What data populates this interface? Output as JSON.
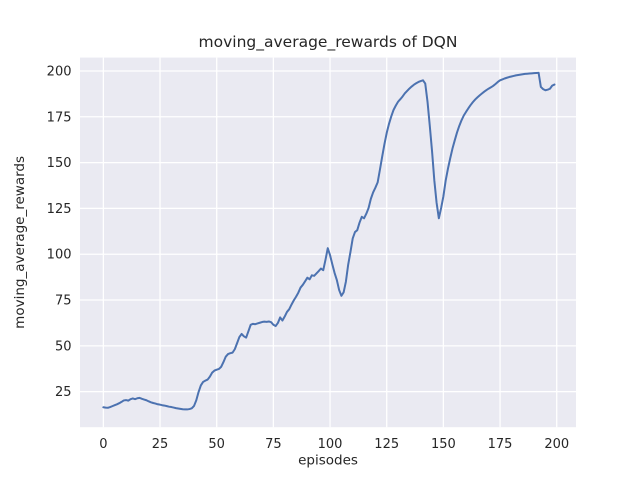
{
  "figure": {
    "title": "moving_average_rewards of DQN",
    "xlabel": "episodes",
    "ylabel": "moving_average_rewards"
  },
  "chart_data": {
    "type": "line",
    "title": "moving_average_rewards of DQN",
    "xlabel": "episodes",
    "ylabel": "moving_average_rewards",
    "x_ticks": [
      0,
      25,
      50,
      75,
      100,
      125,
      150,
      175,
      200
    ],
    "y_ticks": [
      25,
      50,
      75,
      100,
      125,
      150,
      175,
      200
    ],
    "xlim": [
      -10.3,
      208.5
    ],
    "ylim": [
      5.6,
      207.3
    ],
    "grid": true,
    "legend": "none",
    "style": {
      "figure_bg": "#FFFFFF",
      "plot_bg": "#EAEAF2",
      "grid_color": "#FFFFFF",
      "line_color": "#4C72B0",
      "text_color": "#262626"
    },
    "series": [
      {
        "name": "moving_average_rewards",
        "x": [
          0,
          1,
          2,
          3,
          4,
          5,
          6,
          7,
          8,
          9,
          10,
          11,
          12,
          13,
          14,
          15,
          16,
          17,
          18,
          19,
          20,
          21,
          22,
          23,
          24,
          25,
          26,
          27,
          28,
          29,
          30,
          31,
          32,
          33,
          34,
          35,
          36,
          37,
          38,
          39,
          40,
          41,
          42,
          43,
          44,
          45,
          46,
          47,
          48,
          49,
          50,
          51,
          52,
          53,
          54,
          55,
          56,
          57,
          58,
          59,
          60,
          61,
          62,
          63,
          64,
          65,
          66,
          67,
          68,
          69,
          70,
          71,
          72,
          73,
          74,
          75,
          76,
          77,
          78,
          79,
          80,
          81,
          82,
          83,
          84,
          85,
          86,
          87,
          88,
          89,
          90,
          91,
          92,
          93,
          94,
          95,
          96,
          97,
          98,
          99,
          100,
          101,
          102,
          103,
          104,
          105,
          106,
          107,
          108,
          109,
          110,
          111,
          112,
          113,
          114,
          115,
          116,
          117,
          118,
          119,
          120,
          121,
          122,
          123,
          124,
          125,
          126,
          127,
          128,
          129,
          130,
          131,
          132,
          133,
          134,
          135,
          136,
          137,
          138,
          139,
          140,
          141,
          142,
          143,
          144,
          145,
          146,
          147,
          148,
          149,
          150,
          151,
          152,
          153,
          154,
          155,
          156,
          157,
          158,
          159,
          160,
          161,
          162,
          163,
          164,
          165,
          166,
          167,
          168,
          169,
          170,
          171,
          172,
          173,
          174,
          175,
          176,
          177,
          178,
          179,
          180,
          181,
          182,
          183,
          184,
          185,
          186,
          187,
          188,
          189,
          190,
          191,
          192,
          193,
          194,
          195,
          196,
          197,
          198,
          199
        ],
        "y": [
          16.5,
          16.3,
          16.2,
          16.6,
          17.1,
          17.6,
          18.1,
          18.7,
          19.4,
          20.2,
          20.4,
          20.1,
          20.9,
          21.3,
          20.9,
          21.4,
          21.6,
          21.1,
          20.7,
          20.3,
          19.7,
          19.2,
          18.8,
          18.5,
          18.1,
          17.9,
          17.6,
          17.4,
          17.1,
          16.8,
          16.6,
          16.3,
          16.0,
          15.8,
          15.6,
          15.4,
          15.3,
          15.3,
          15.5,
          15.9,
          17.2,
          20.3,
          24.8,
          28.4,
          30.3,
          31.0,
          31.6,
          33.2,
          35.4,
          36.5,
          37.0,
          37.4,
          38.6,
          41.2,
          44.1,
          45.5,
          46.0,
          46.3,
          48.2,
          51.5,
          54.8,
          56.5,
          55.2,
          54.5,
          58.0,
          61.5,
          62.0,
          61.8,
          62.2,
          62.6,
          63.0,
          63.2,
          63.1,
          63.3,
          62.9,
          61.5,
          60.8,
          62.5,
          65.5,
          63.8,
          66.0,
          68.5,
          70.0,
          72.5,
          74.8,
          76.8,
          79.0,
          81.8,
          83.3,
          85.2,
          87.2,
          86.3,
          88.5,
          88.2,
          89.5,
          90.8,
          92.2,
          91.3,
          97.0,
          103.3,
          99.5,
          94.5,
          89.8,
          85.9,
          80.5,
          77.3,
          79.2,
          85.1,
          94.3,
          101.2,
          108.6,
          112.1,
          113.1,
          117.2,
          120.4,
          119.6,
          122.1,
          125.2,
          130.2,
          133.7,
          136.3,
          139.2,
          146.1,
          153.2,
          160.1,
          166.2,
          171.1,
          175.2,
          178.7,
          181.1,
          183.2,
          184.6,
          186.1,
          187.8,
          189.1,
          190.4,
          191.5,
          192.5,
          193.3,
          194.0,
          194.5,
          194.9,
          193.1,
          183.2,
          170.1,
          156.2,
          140.3,
          128.1,
          119.6,
          125.2,
          131.6,
          140.1,
          146.6,
          152.3,
          157.6,
          162.1,
          166.4,
          170.0,
          173.1,
          175.7,
          177.7,
          179.6,
          181.4,
          183.0,
          184.4,
          185.6,
          186.7,
          187.7,
          188.7,
          189.6,
          190.4,
          191.1,
          191.9,
          192.9,
          194.0,
          194.9,
          195.4,
          195.9,
          196.3,
          196.7,
          197.0,
          197.3,
          197.6,
          197.8,
          198.0,
          198.2,
          198.4,
          198.5,
          198.6,
          198.7,
          198.8,
          198.9,
          199.0,
          191.3,
          190.1,
          189.5,
          189.8,
          190.3,
          192.0,
          192.6
        ]
      }
    ]
  }
}
